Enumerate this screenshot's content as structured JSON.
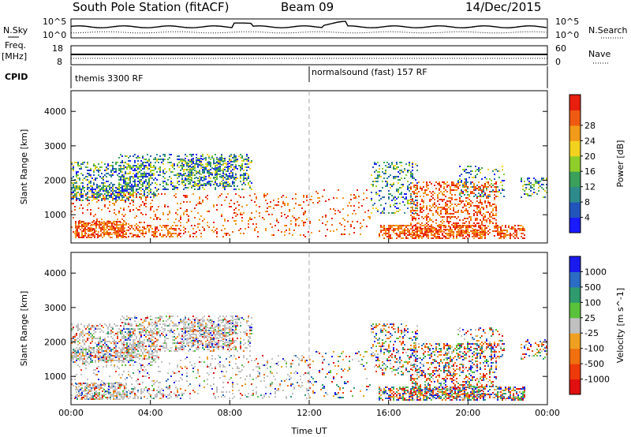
{
  "header": {
    "station": "South Pole Station (fitACF)",
    "beam": "Beam 09",
    "date": "14/Dec/2015"
  },
  "side_labels": {
    "nsky": "N.Sky",
    "nsearch": "N.Search",
    "freq_line1": "Freq.",
    "freq_line2": "[MHz]",
    "nave": "Nave",
    "cpid": "CPID"
  },
  "noise_axis": {
    "top": "10^5",
    "bottom": "10^0"
  },
  "freq_axis": {
    "left_ticks": [
      "18",
      "8"
    ],
    "right_ticks": [
      "60",
      "0"
    ]
  },
  "cpid_segments": [
    {
      "name": "themis 3300 RF",
      "start_hour": 0
    },
    {
      "name": "normalsound (fast) 157 RF",
      "start_hour": 12
    }
  ],
  "chart_data": [
    {
      "type": "heatmap",
      "title": "",
      "xlabel": "Time UT",
      "ylabel": "Slant Range [km]",
      "x_ticks": [
        "00:00",
        "04:00",
        "08:00",
        "12:00",
        "16:00",
        "20:00",
        "00:00"
      ],
      "x_range_hours": [
        0,
        24
      ],
      "y_ticks": [
        1000,
        2000,
        3000,
        4000
      ],
      "ylim": [
        180,
        4600
      ],
      "colorbar": {
        "label": "Power [dB]",
        "ticks": [
          "4",
          "8",
          "12",
          "16",
          "20",
          "24",
          "28"
        ],
        "colors": [
          "#1a1aff",
          "#2255bb",
          "#2e8b8b",
          "#3aa05a",
          "#8fce2a",
          "#f2d21f",
          "#f29a1a",
          "#ef5a12",
          "#e81e0e"
        ]
      }
    },
    {
      "type": "heatmap",
      "title": "",
      "xlabel": "Time UT",
      "ylabel": "Slant Range [km]",
      "x_ticks": [
        "00:00",
        "04:00",
        "08:00",
        "12:00",
        "16:00",
        "20:00",
        "00:00"
      ],
      "x_range_hours": [
        0,
        24
      ],
      "y_ticks": [
        1000,
        2000,
        3000,
        4000
      ],
      "ylim": [
        180,
        4600
      ],
      "colorbar": {
        "label": "Velocity [m s^-1]",
        "ticks": [
          "1000",
          "500",
          "100",
          "25",
          "-25",
          "-100",
          "-500",
          "-1000"
        ],
        "colors": [
          "#1a1aee",
          "#2b6cc4",
          "#2e9a6e",
          "#59c23a",
          "#c0c0c0",
          "#f0a020",
          "#f07010",
          "#ee3a0a",
          "#e01010"
        ]
      }
    }
  ]
}
